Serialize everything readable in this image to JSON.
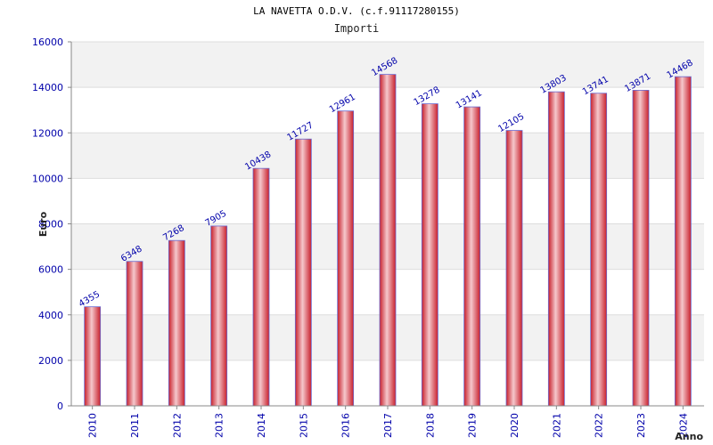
{
  "chart_data": {
    "type": "bar",
    "title": "LA NAVETTA O.D.V. (c.f.91117280155)",
    "subtitle": "Importi",
    "xlabel": "Anno",
    "ylabel": "Euro",
    "categories": [
      "2010",
      "2011",
      "2012",
      "2013",
      "2014",
      "2015",
      "2016",
      "2017",
      "2018",
      "2019",
      "2020",
      "2021",
      "2022",
      "2023",
      "2024"
    ],
    "values": [
      4355,
      6348,
      7268,
      7905,
      10438,
      11727,
      12961,
      14568,
      13278,
      13141,
      12105,
      13803,
      13741,
      13871,
      14468
    ],
    "ylim": [
      0,
      16000
    ],
    "yticks": [
      0,
      2000,
      4000,
      6000,
      8000,
      10000,
      12000,
      14000,
      16000
    ],
    "grid": true,
    "legend": "none",
    "colors": {
      "bar_edge": "#d42a35",
      "bar_center": "#f5c8cc",
      "label_text": "#0000aa",
      "band_alt": "#f2f2f2",
      "axis": "#888888"
    }
  }
}
